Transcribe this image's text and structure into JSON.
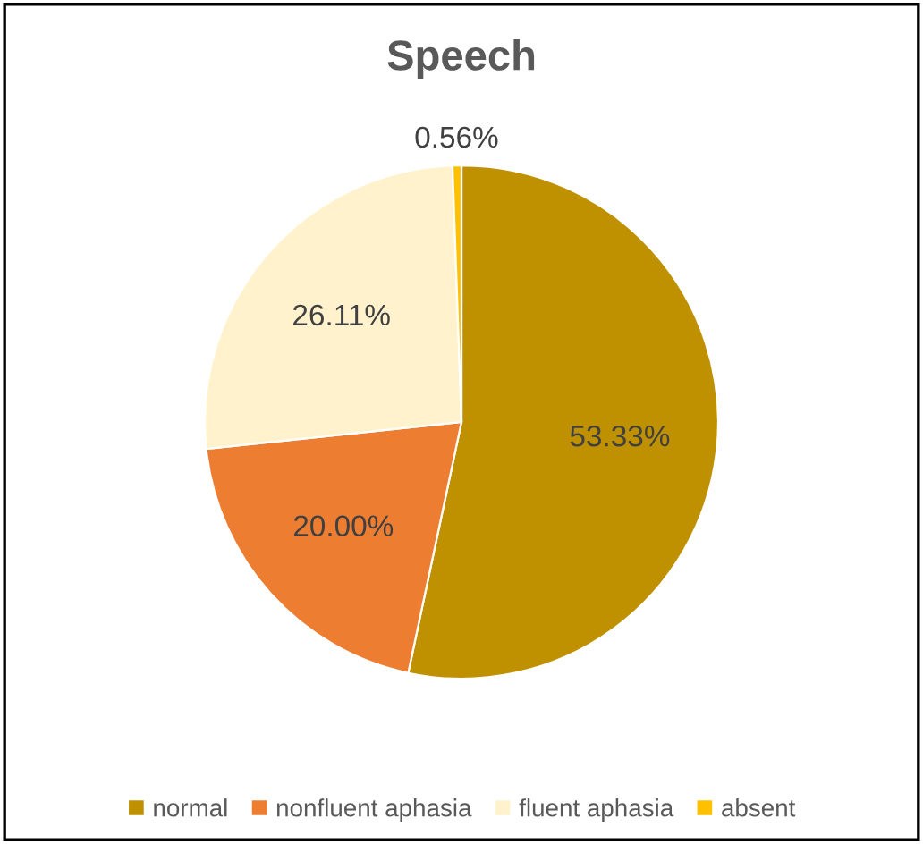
{
  "chart_data": {
    "type": "pie",
    "title": "Speech",
    "categories": [
      "normal",
      "nonfluent aphasia",
      "fluent aphasia",
      "absent"
    ],
    "values": [
      53.33,
      20.0,
      26.11,
      0.56
    ],
    "value_labels": [
      "53.33%",
      "20.00%",
      "26.11%",
      "0.56%"
    ],
    "colors": [
      "#bf9000",
      "#ed7d31",
      "#fff2cc",
      "#ffc000"
    ],
    "legend": "bottom"
  }
}
